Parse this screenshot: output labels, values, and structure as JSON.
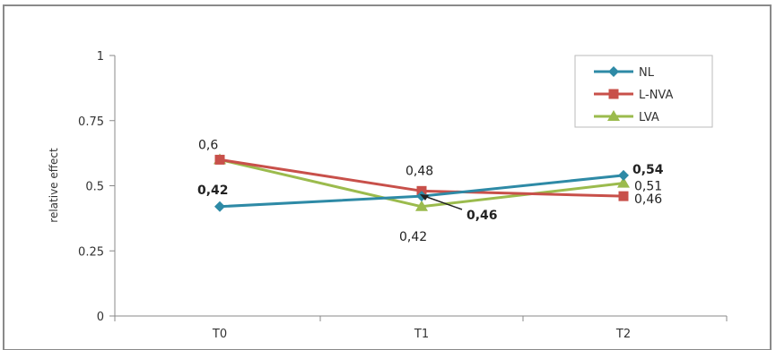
{
  "chart_data": {
    "type": "line",
    "title": "",
    "xlabel": "",
    "ylabel": "relative effect",
    "categories": [
      "T0",
      "T1",
      "T2"
    ],
    "ylim": [
      0,
      1
    ],
    "yticks": [
      "0",
      "0.25",
      "0.5",
      "0.75",
      "1"
    ],
    "ytick_values": [
      0,
      0.25,
      0.5,
      0.75,
      1
    ],
    "grid": false,
    "legend_position": "top-right",
    "series": [
      {
        "name": "NL",
        "values": [
          0.42,
          0.46,
          0.54
        ],
        "color": "#2e8aa6",
        "marker": "diamond"
      },
      {
        "name": "L-NVA",
        "values": [
          0.6,
          0.48,
          0.46
        ],
        "color": "#c8504a",
        "marker": "square"
      },
      {
        "name": "LVA",
        "values": [
          0.6,
          0.42,
          0.51
        ],
        "color": "#9bbb4d",
        "marker": "triangle"
      }
    ],
    "annotations": [
      {
        "text": "0,6",
        "series": 1,
        "index": 0
      },
      {
        "text": "0,42",
        "series": 0,
        "index": 0
      },
      {
        "text": "0,48",
        "series": 1,
        "index": 1
      },
      {
        "text": "0,46",
        "series": 0,
        "index": 1
      },
      {
        "text": "0,42",
        "series": 2,
        "index": 1
      },
      {
        "text": "0,54",
        "series": 0,
        "index": 2
      },
      {
        "text": "0,51",
        "series": 2,
        "index": 2
      },
      {
        "text": "0,46",
        "series": 1,
        "index": 2
      }
    ]
  }
}
